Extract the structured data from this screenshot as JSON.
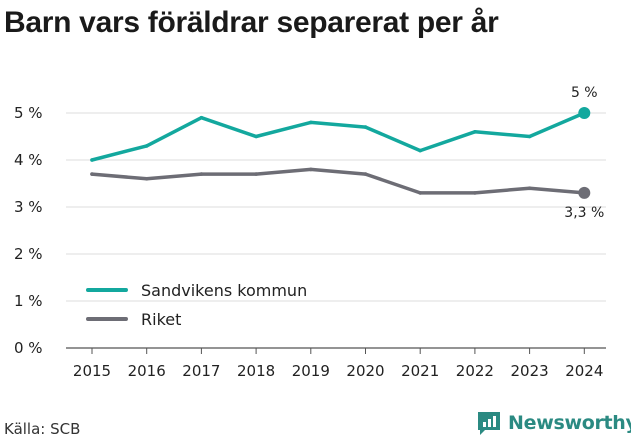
{
  "title": "Barn vars föräldrar separerat per år",
  "source": "Källa: SCB",
  "brand": {
    "name": "Newsworthy",
    "icon": "newsworthy-logo-icon",
    "color": "#2b8a82"
  },
  "chart_data": {
    "type": "line",
    "title": "Barn vars föräldrar separerat per år",
    "xlabel": "",
    "ylabel": "",
    "x": [
      2015,
      2016,
      2017,
      2018,
      2019,
      2020,
      2021,
      2022,
      2023,
      2024
    ],
    "x_tick_labels": [
      "2015",
      "2016",
      "2017",
      "2018",
      "2019",
      "2020",
      "2021",
      "2022",
      "2023",
      "2024"
    ],
    "ylim": [
      0,
      5
    ],
    "y_ticks": [
      0,
      1,
      2,
      3,
      4,
      5
    ],
    "y_tick_labels": [
      "0 %",
      "1 %",
      "2 %",
      "3 %",
      "4 %",
      "5 %"
    ],
    "grid": "horizontal",
    "legend_placement": "bottom-left",
    "series": [
      {
        "name": "Sandvikens kommun",
        "color": "#13a89e",
        "values": [
          4.0,
          4.3,
          4.9,
          4.5,
          4.8,
          4.7,
          4.2,
          4.6,
          4.5,
          5.0
        ],
        "end_label": "5 %"
      },
      {
        "name": "Riket",
        "color": "#6d6d75",
        "values": [
          3.7,
          3.6,
          3.7,
          3.7,
          3.8,
          3.7,
          3.3,
          3.3,
          3.4,
          3.3
        ],
        "end_label": "3,3 %"
      }
    ]
  }
}
